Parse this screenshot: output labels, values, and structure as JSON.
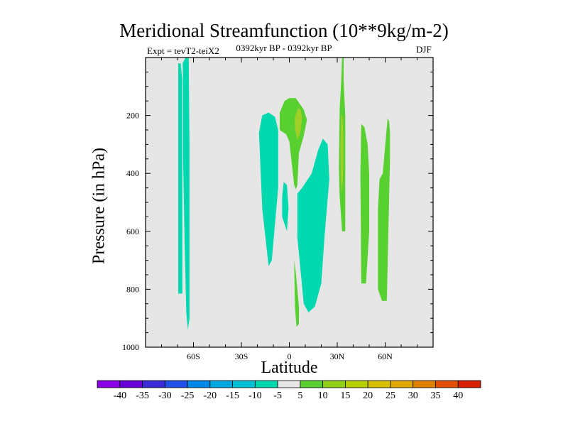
{
  "chart_data": {
    "type": "contour",
    "title": "Meridional Streamfunction (10**9kg/m-2)",
    "left_label": "Expt = tevT2-teiX2",
    "center_label": "0392kyr BP - 0392kyr BP",
    "right_label": "DJF",
    "xlabel": "Latitude",
    "ylabel": "Pressure (in hPa)",
    "xlim": [
      -90,
      90
    ],
    "ylim": [
      1000,
      0
    ],
    "x_ticks": [
      {
        "value": -60,
        "label": "60S"
      },
      {
        "value": -30,
        "label": "30S"
      },
      {
        "value": 0,
        "label": "0"
      },
      {
        "value": 30,
        "label": "30N"
      },
      {
        "value": 60,
        "label": "60N"
      }
    ],
    "y_ticks": [
      {
        "value": 200,
        "label": "200"
      },
      {
        "value": 400,
        "label": "400"
      },
      {
        "value": 600,
        "label": "600"
      },
      {
        "value": 800,
        "label": "800"
      },
      {
        "value": 1000,
        "label": "1000"
      }
    ],
    "background_color": "#e6e6e6",
    "colorbar": {
      "labels": [
        "-40",
        "-35",
        "-30",
        "-25",
        "-20",
        "-15",
        "-10",
        "-5",
        "5",
        "10",
        "15",
        "20",
        "25",
        "30",
        "35",
        "40"
      ],
      "colors": [
        "#8b00e8",
        "#6a00d8",
        "#3a2ad8",
        "#2050e8",
        "#0088e8",
        "#00a8e0",
        "#00c0d8",
        "#00d8b0",
        "#e6e6e6",
        "#58d030",
        "#90d018",
        "#b8d000",
        "#d8c000",
        "#e0a800",
        "#e08000",
        "#e05000",
        "#d82000"
      ]
    },
    "regions": [
      {
        "value": -7.5,
        "color": "#00d8b0",
        "points": [
          [
            -69.5,
            20
          ],
          [
            -69.5,
            520
          ],
          [
            -69.5,
            800
          ],
          [
            -69.5,
            815
          ],
          [
            -67,
            815
          ],
          [
            -67,
            480
          ],
          [
            -67,
            80
          ],
          [
            -68,
            20
          ]
        ]
      },
      {
        "value": -7.5,
        "color": "#00d8b0",
        "points": [
          [
            -66.8,
            20
          ],
          [
            -65,
            0
          ],
          [
            -63,
            0
          ],
          [
            -62.5,
            300
          ],
          [
            -62.5,
            550
          ],
          [
            -62.5,
            900
          ],
          [
            -63.5,
            940
          ],
          [
            -64.5,
            880
          ],
          [
            -65.5,
            650
          ],
          [
            -66.5,
            350
          ],
          [
            -66.5,
            100
          ]
        ]
      },
      {
        "value": -7.5,
        "color": "#00d8b0",
        "points": [
          [
            -17,
            200
          ],
          [
            -19,
            260
          ],
          [
            -17,
            520
          ],
          [
            -13,
            720
          ],
          [
            -11,
            700
          ],
          [
            -7,
            450
          ],
          [
            -7,
            250
          ],
          [
            -9,
            205
          ],
          [
            -13,
            190
          ]
        ]
      },
      {
        "value": -7.5,
        "color": "#00d8b0",
        "points": [
          [
            -3.5,
            430
          ],
          [
            -4.5,
            480
          ],
          [
            -4.5,
            550
          ],
          [
            -1.5,
            600
          ],
          [
            -0.5,
            520
          ],
          [
            -1.5,
            440
          ]
        ]
      },
      {
        "value": -7.5,
        "color": "#00d8b0",
        "points": [
          [
            5,
            470
          ],
          [
            5,
            620
          ],
          [
            9,
            850
          ],
          [
            12,
            880
          ],
          [
            16,
            860
          ],
          [
            20,
            780
          ],
          [
            22,
            620
          ],
          [
            25,
            420
          ],
          [
            24,
            300
          ],
          [
            21,
            280
          ],
          [
            18,
            320
          ],
          [
            14,
            400
          ],
          [
            8,
            450
          ]
        ]
      },
      {
        "value": 7.5,
        "color": "#58d030",
        "points": [
          [
            -6,
            190
          ],
          [
            -6,
            250
          ],
          [
            -2,
            265
          ],
          [
            0,
            290
          ],
          [
            3,
            440
          ],
          [
            4,
            455
          ],
          [
            5,
            440
          ],
          [
            6,
            330
          ],
          [
            9,
            270
          ],
          [
            11,
            215
          ],
          [
            9,
            180
          ],
          [
            4,
            140
          ],
          [
            0,
            140
          ],
          [
            -3,
            150
          ]
        ]
      },
      {
        "value": 12.5,
        "color": "#a0d028",
        "points": [
          [
            5.5,
            175
          ],
          [
            3.5,
            205
          ],
          [
            3.5,
            245
          ],
          [
            5,
            285
          ],
          [
            7,
            255
          ],
          [
            8,
            205
          ],
          [
            7,
            180
          ]
        ]
      },
      {
        "value": 7.5,
        "color": "#58d030",
        "points": [
          [
            3,
            700
          ],
          [
            3.5,
            860
          ],
          [
            4.5,
            930
          ],
          [
            6,
            920
          ],
          [
            6,
            860
          ],
          [
            5,
            800
          ],
          [
            4,
            740
          ]
        ]
      },
      {
        "value": 7.5,
        "color": "#58d030",
        "points": [
          [
            33,
            0
          ],
          [
            32.5,
            80
          ],
          [
            31.5,
            180
          ],
          [
            31,
            380
          ],
          [
            31.5,
            480
          ],
          [
            33,
            600
          ],
          [
            35,
            600
          ],
          [
            35,
            400
          ],
          [
            35,
            200
          ],
          [
            34,
            80
          ],
          [
            34,
            0
          ]
        ]
      },
      {
        "value": 12.5,
        "color": "#a0d028",
        "points": [
          [
            32.5,
            200
          ],
          [
            32,
            300
          ],
          [
            32.2,
            420
          ],
          [
            33,
            470
          ],
          [
            33.8,
            380
          ],
          [
            33.8,
            260
          ],
          [
            33.3,
            200
          ]
        ]
      },
      {
        "value": 7.5,
        "color": "#58d030",
        "points": [
          [
            45,
            230
          ],
          [
            44.5,
            400
          ],
          [
            45,
            780
          ],
          [
            48,
            780
          ],
          [
            50,
            600
          ],
          [
            50,
            400
          ],
          [
            49,
            300
          ],
          [
            47,
            240
          ]
        ]
      },
      {
        "value": 7.5,
        "color": "#58d030",
        "points": [
          [
            61.5,
            210
          ],
          [
            58.5,
            400
          ],
          [
            56.5,
            420
          ],
          [
            55.5,
            520
          ],
          [
            55.5,
            800
          ],
          [
            58,
            840
          ],
          [
            61,
            840
          ],
          [
            62,
            600
          ],
          [
            63,
            350
          ],
          [
            63,
            260
          ],
          [
            62.5,
            220
          ]
        ]
      }
    ]
  }
}
